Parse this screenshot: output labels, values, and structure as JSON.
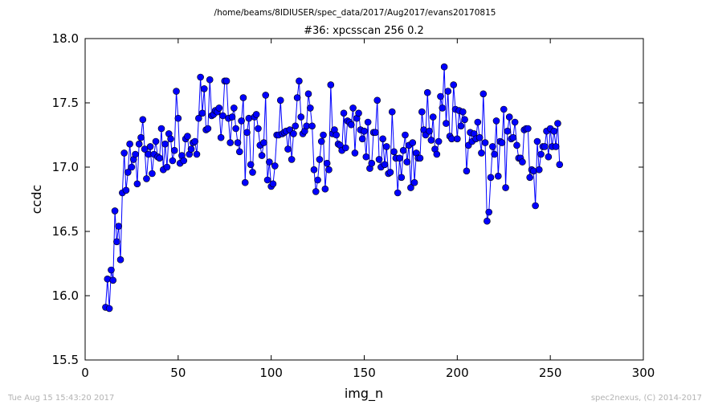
{
  "chart_data": {
    "type": "line",
    "suptitle": "/home/beams/8IDIUSER/spec_data/2017/Aug2017/evans20170815",
    "title": "#36: xpcsscan 256 0.2",
    "xlabel": "img_n",
    "ylabel": "ccdc",
    "xlim": [
      0,
      300
    ],
    "ylim": [
      15.5,
      18.0
    ],
    "xticks": [
      0,
      50,
      100,
      150,
      200,
      250,
      300
    ],
    "yticks": [
      15.5,
      16.0,
      16.5,
      17.0,
      17.5,
      18.0
    ],
    "xtick_labels": [
      "0",
      "50",
      "100",
      "150",
      "200",
      "250",
      "300"
    ],
    "ytick_labels": [
      "15.5",
      "16.0",
      "16.5",
      "17.0",
      "17.5",
      "18.0"
    ],
    "grid": false,
    "marker": "circle",
    "series": [
      {
        "color": "#0000ff",
        "x_start": 11,
        "x_step": 1,
        "y": [
          15.91,
          16.13,
          15.9,
          16.2,
          16.12,
          16.66,
          16.42,
          16.54,
          16.28,
          16.8,
          17.11,
          16.82,
          16.96,
          17.18,
          17.0,
          17.06,
          17.1,
          16.87,
          17.18,
          17.23,
          17.37,
          17.14,
          16.91,
          17.1,
          17.16,
          16.95,
          17.1,
          17.2,
          17.08,
          17.07,
          17.3,
          16.98,
          17.18,
          17.0,
          17.26,
          17.22,
          17.05,
          17.13,
          17.59,
          17.38,
          17.03,
          17.09,
          17.05,
          17.22,
          17.24,
          17.1,
          17.14,
          17.19,
          17.2,
          17.1,
          17.38,
          17.7,
          17.42,
          17.61,
          17.29,
          17.3,
          17.68,
          17.4,
          17.41,
          17.44,
          17.43,
          17.46,
          17.23,
          17.4,
          17.67,
          17.67,
          17.38,
          17.19,
          17.39,
          17.46,
          17.3,
          17.19,
          17.12,
          17.36,
          17.54,
          16.88,
          17.27,
          17.38,
          17.02,
          16.96,
          17.39,
          17.41,
          17.3,
          17.17,
          17.09,
          17.19,
          17.56,
          16.9,
          17.04,
          16.85,
          16.87,
          17.01,
          17.25,
          17.25,
          17.52,
          17.26,
          17.27,
          17.28,
          17.14,
          17.29,
          17.06,
          17.26,
          17.32,
          17.54,
          17.67,
          17.39,
          17.26,
          17.28,
          17.32,
          17.57,
          17.46,
          17.32,
          16.98,
          16.81,
          16.9,
          17.06,
          17.2,
          17.25,
          16.83,
          17.03,
          16.98,
          17.64,
          17.26,
          17.29,
          17.25,
          17.18,
          17.17,
          17.13,
          17.42,
          17.15,
          17.36,
          17.35,
          17.33,
          17.46,
          17.11,
          17.38,
          17.42,
          17.29,
          17.22,
          17.28,
          17.08,
          17.35,
          16.99,
          17.03,
          17.27,
          17.27,
          17.52,
          17.06,
          17.0,
          17.22,
          17.02,
          17.16,
          16.95,
          16.96,
          17.43,
          17.12,
          17.07,
          16.8,
          17.07,
          16.92,
          17.13,
          17.25,
          17.04,
          17.17,
          16.84,
          17.19,
          16.88,
          17.11,
          17.07,
          17.07,
          17.43,
          17.29,
          17.25,
          17.58,
          17.28,
          17.21,
          17.39,
          17.14,
          17.1,
          17.2,
          17.55,
          17.46,
          17.78,
          17.34,
          17.59,
          17.24,
          17.22,
          17.64,
          17.45,
          17.22,
          17.44,
          17.32,
          17.43,
          17.37,
          16.97,
          17.17,
          17.27,
          17.2,
          17.26,
          17.22,
          17.35,
          17.23,
          17.11,
          17.57,
          17.19,
          16.58,
          16.65,
          16.92,
          17.16,
          17.1,
          17.36,
          16.93,
          17.2,
          17.19,
          17.45,
          16.84,
          17.28,
          17.39,
          17.22,
          17.23,
          17.35,
          17.17,
          17.07,
          17.07,
          17.04,
          17.29,
          17.3,
          17.3,
          16.92,
          16.98,
          16.97,
          16.7,
          17.2,
          16.98,
          17.1,
          17.16,
          17.16,
          17.28,
          17.08,
          17.3,
          17.16,
          17.28,
          17.16,
          17.34,
          17.02
        ]
      }
    ]
  },
  "footer": {
    "left": "Tue Aug 15 15:43:20 2017",
    "right": "spec2nexus, (C) 2014-2017"
  }
}
